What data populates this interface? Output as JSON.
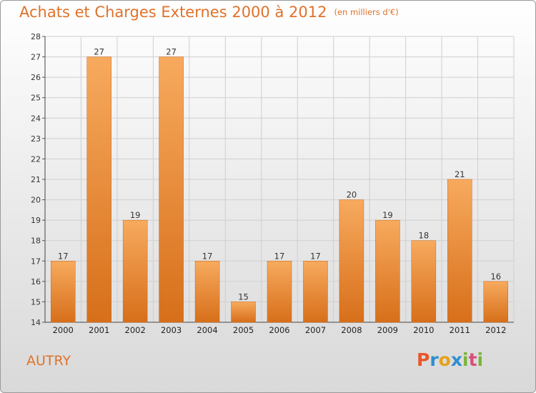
{
  "title": "Achats et Charges Externes 2000 à 2012",
  "unit_note": "(en milliers d'€)",
  "commune": "AUTRY",
  "logo": {
    "letters": [
      "P",
      "r",
      "o",
      "x",
      "i",
      "t",
      "i"
    ],
    "colors": [
      "#e8572a",
      "#2f8fd0",
      "#e5a21c",
      "#2f8fd0",
      "#7bb33a",
      "#d94f7a",
      "#7bb33a"
    ]
  },
  "colors": {
    "bar_light": "#f7aa5e",
    "bar_dark": "#d76f1a",
    "title": "#e0722a",
    "grid": "#cfcfcf"
  },
  "chart_data": {
    "type": "bar",
    "title": "Achats et Charges Externes 2000 à 2012",
    "categories": [
      "2000",
      "2001",
      "2002",
      "2003",
      "2004",
      "2005",
      "2006",
      "2007",
      "2008",
      "2009",
      "2010",
      "2011",
      "2012"
    ],
    "values": [
      17,
      27,
      19,
      27,
      17,
      15,
      17,
      17,
      20,
      19,
      18,
      21,
      16
    ],
    "ylim": [
      14,
      28
    ],
    "yticks": [
      14,
      15,
      16,
      17,
      18,
      19,
      20,
      21,
      22,
      23,
      24,
      25,
      26,
      27,
      28
    ],
    "grid": true,
    "data_labels": true
  }
}
